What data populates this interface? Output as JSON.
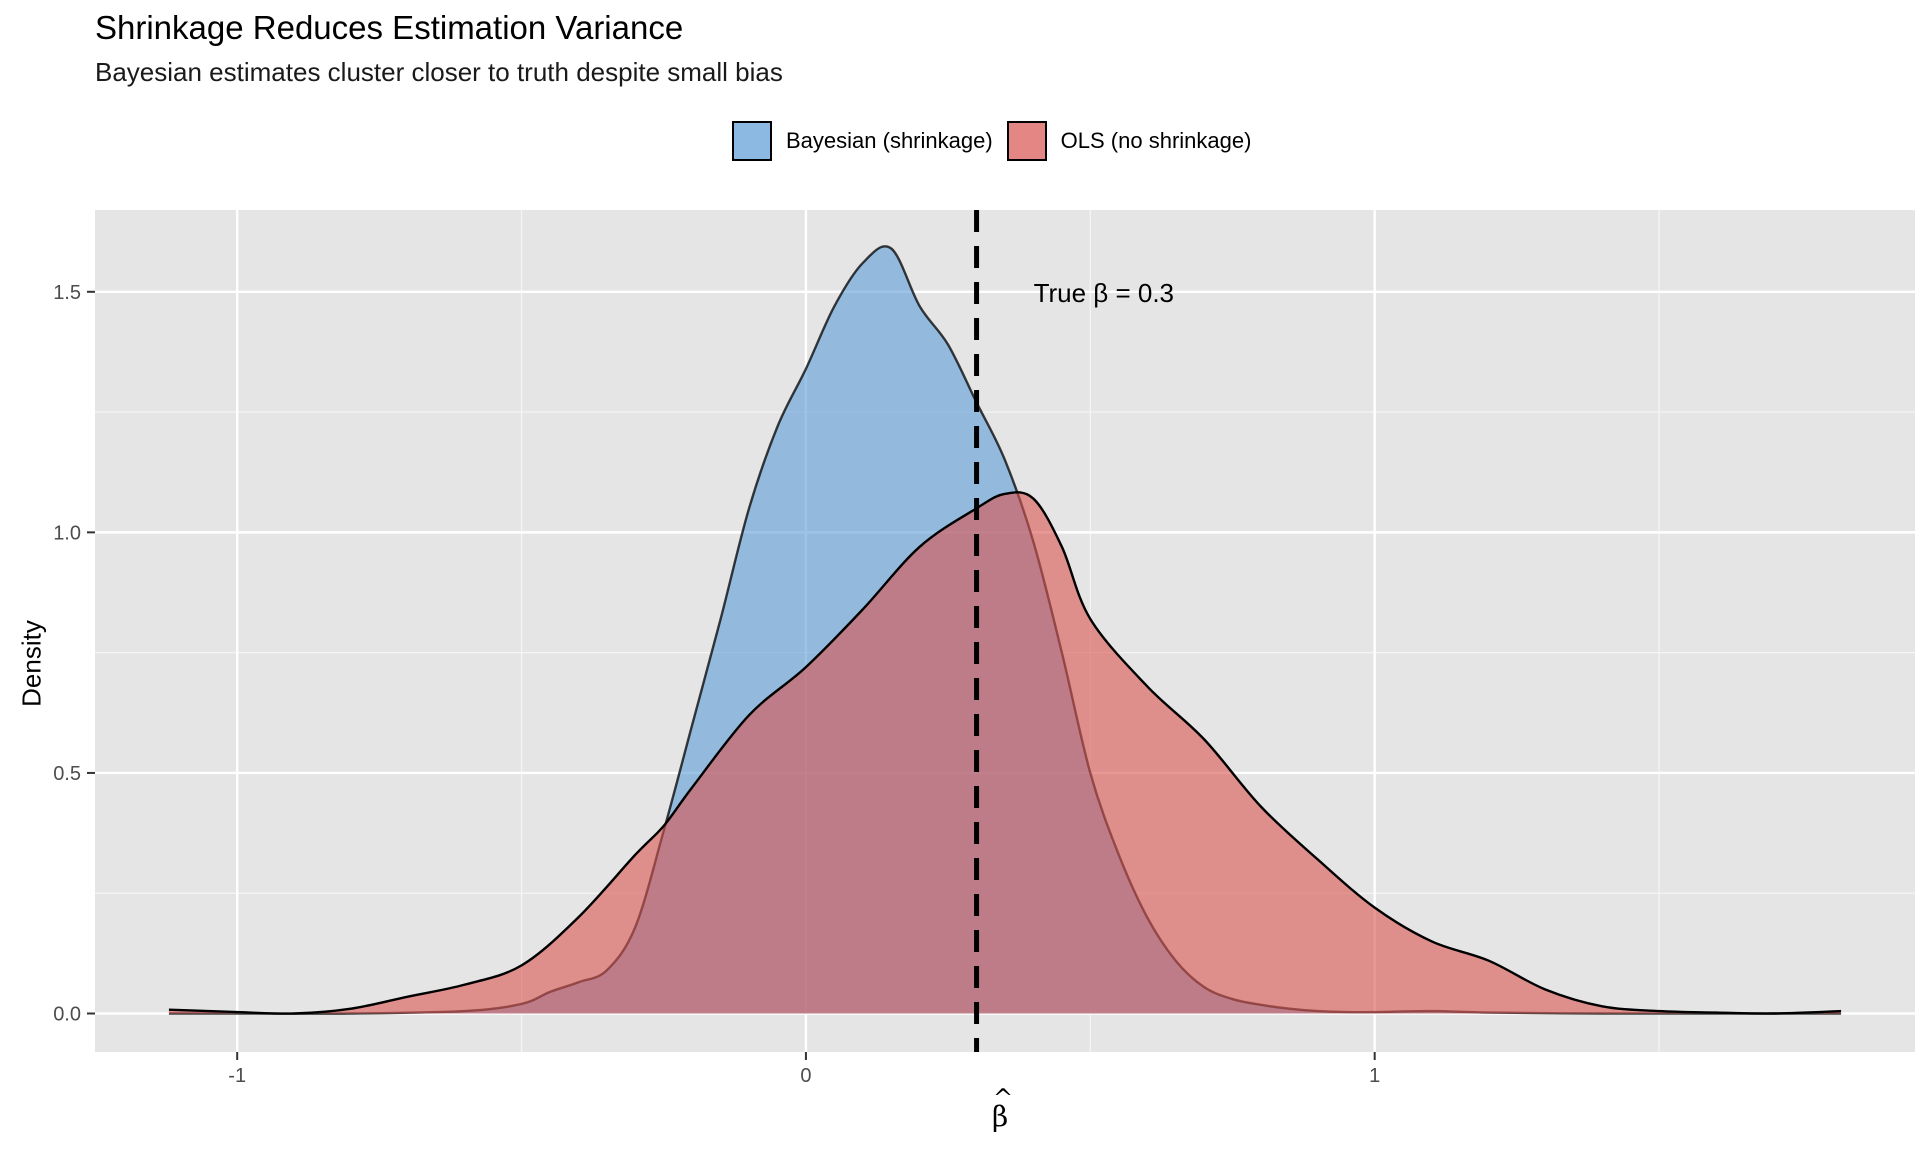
{
  "chart_data": {
    "type": "area",
    "title": "Shrinkage Reduces Estimation Variance",
    "subtitle": "Bayesian estimates cluster closer to truth despite small bias",
    "xlabel": "β",
    "ylabel": "Density",
    "xlim": [
      -1.25,
      1.95
    ],
    "ylim": [
      -0.08,
      1.67
    ],
    "xticks": [
      -1,
      0,
      1
    ],
    "xtick_labels": [
      "-1",
      "0",
      "1"
    ],
    "yticks": [
      0.0,
      0.5,
      1.0,
      1.5
    ],
    "ytick_labels": [
      "0.0",
      "0.5",
      "1.0",
      "1.5"
    ],
    "grid": true,
    "legend_position": "top",
    "series": [
      {
        "name": "Bayesian (shrinkage)",
        "color": "#5b9bd5",
        "x": [
          -1.12,
          -1.0,
          -0.8,
          -0.6,
          -0.5,
          -0.45,
          -0.4,
          -0.35,
          -0.3,
          -0.25,
          -0.2,
          -0.15,
          -0.1,
          -0.05,
          0.0,
          0.05,
          0.1,
          0.15,
          0.2,
          0.25,
          0.3,
          0.35,
          0.4,
          0.45,
          0.5,
          0.55,
          0.6,
          0.65,
          0.7,
          0.75,
          0.8,
          0.85,
          0.9,
          0.95,
          1.0,
          1.1,
          1.2,
          1.4,
          1.6,
          1.82
        ],
        "values": [
          0.0,
          0.0,
          0.0,
          0.005,
          0.02,
          0.045,
          0.065,
          0.09,
          0.18,
          0.38,
          0.6,
          0.82,
          1.05,
          1.22,
          1.34,
          1.47,
          1.56,
          1.59,
          1.47,
          1.39,
          1.27,
          1.15,
          0.98,
          0.75,
          0.5,
          0.33,
          0.2,
          0.11,
          0.055,
          0.03,
          0.018,
          0.01,
          0.005,
          0.003,
          0.003,
          0.005,
          0.002,
          0.0,
          0.0,
          0.0
        ]
      },
      {
        "name": "OLS (no shrinkage)",
        "color": "#d9534f",
        "x": [
          -1.12,
          -1.0,
          -0.9,
          -0.8,
          -0.7,
          -0.6,
          -0.5,
          -0.4,
          -0.3,
          -0.25,
          -0.2,
          -0.1,
          0.0,
          0.1,
          0.2,
          0.3,
          0.35,
          0.4,
          0.45,
          0.5,
          0.6,
          0.7,
          0.8,
          0.9,
          1.0,
          1.1,
          1.2,
          1.3,
          1.4,
          1.5,
          1.6,
          1.7,
          1.82
        ],
        "values": [
          0.008,
          0.003,
          0.0,
          0.01,
          0.035,
          0.06,
          0.1,
          0.2,
          0.33,
          0.39,
          0.47,
          0.62,
          0.72,
          0.84,
          0.97,
          1.05,
          1.08,
          1.07,
          0.97,
          0.82,
          0.68,
          0.57,
          0.43,
          0.32,
          0.22,
          0.15,
          0.11,
          0.05,
          0.015,
          0.005,
          0.002,
          0.0,
          0.005
        ]
      }
    ],
    "reference_line": {
      "x": 0.3,
      "label": "True β = 0.3",
      "style": "dashed"
    }
  }
}
